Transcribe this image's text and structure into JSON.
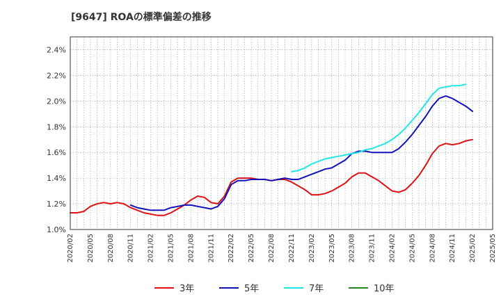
{
  "chart_data": {
    "type": "line",
    "title": "[9647]  ROAの標準偏差の推移",
    "xlabel": "",
    "ylabel": "",
    "ylim": [
      1.0,
      2.5
    ],
    "y_ticks": [
      "1.0%",
      "1.2%",
      "1.4%",
      "1.6%",
      "1.8%",
      "2.0%",
      "2.2%",
      "2.4%"
    ],
    "x_ticks": [
      "2020/02",
      "2020/05",
      "2020/08",
      "2020/11",
      "2021/02",
      "2021/05",
      "2021/08",
      "2021/11",
      "2022/02",
      "2022/05",
      "2022/08",
      "2022/11",
      "2023/02",
      "2023/05",
      "2023/08",
      "2023/11",
      "2024/02",
      "2024/05",
      "2024/08",
      "2024/11",
      "2025/02",
      "2025/05"
    ],
    "x_start": "2020/02",
    "x_end": "2025/05",
    "grid": true,
    "legend_position": "bottom",
    "series": [
      {
        "name": "3年",
        "color": "#dd1111",
        "start": "2020/02",
        "values": [
          1.13,
          1.13,
          1.14,
          1.18,
          1.2,
          1.21,
          1.2,
          1.21,
          1.2,
          1.17,
          1.15,
          1.13,
          1.12,
          1.11,
          1.11,
          1.13,
          1.16,
          1.19,
          1.23,
          1.26,
          1.25,
          1.21,
          1.2,
          1.26,
          1.37,
          1.4,
          1.4,
          1.4,
          1.39,
          1.39,
          1.38,
          1.39,
          1.39,
          1.37,
          1.34,
          1.31,
          1.27,
          1.27,
          1.28,
          1.3,
          1.33,
          1.36,
          1.41,
          1.44,
          1.44,
          1.41,
          1.38,
          1.34,
          1.3,
          1.29,
          1.31,
          1.36,
          1.42,
          1.5,
          1.59,
          1.65,
          1.67,
          1.66,
          1.67,
          1.69,
          1.7
        ]
      },
      {
        "name": "5年",
        "color": "#1111bb",
        "start": "2020/11",
        "values": [
          1.19,
          1.17,
          1.16,
          1.15,
          1.15,
          1.15,
          1.17,
          1.18,
          1.19,
          1.19,
          1.18,
          1.17,
          1.16,
          1.18,
          1.24,
          1.35,
          1.38,
          1.38,
          1.39,
          1.39,
          1.39,
          1.38,
          1.39,
          1.4,
          1.39,
          1.39,
          1.41,
          1.43,
          1.45,
          1.47,
          1.48,
          1.51,
          1.54,
          1.59,
          1.61,
          1.61,
          1.6,
          1.6,
          1.6,
          1.6,
          1.63,
          1.68,
          1.74,
          1.81,
          1.88,
          1.96,
          2.02,
          2.04,
          2.02,
          1.99,
          1.96,
          1.92
        ]
      },
      {
        "name": "7年",
        "color": "#22e5e5",
        "start": "2022/11",
        "values": [
          1.45,
          1.46,
          1.48,
          1.51,
          1.53,
          1.55,
          1.56,
          1.57,
          1.58,
          1.59,
          1.6,
          1.62,
          1.63,
          1.65,
          1.67,
          1.7,
          1.74,
          1.79,
          1.85,
          1.91,
          1.98,
          2.05,
          2.1,
          2.11,
          2.12,
          2.12,
          2.13
        ]
      },
      {
        "name": "10年",
        "color": "#228822",
        "start": "",
        "values": []
      }
    ]
  }
}
